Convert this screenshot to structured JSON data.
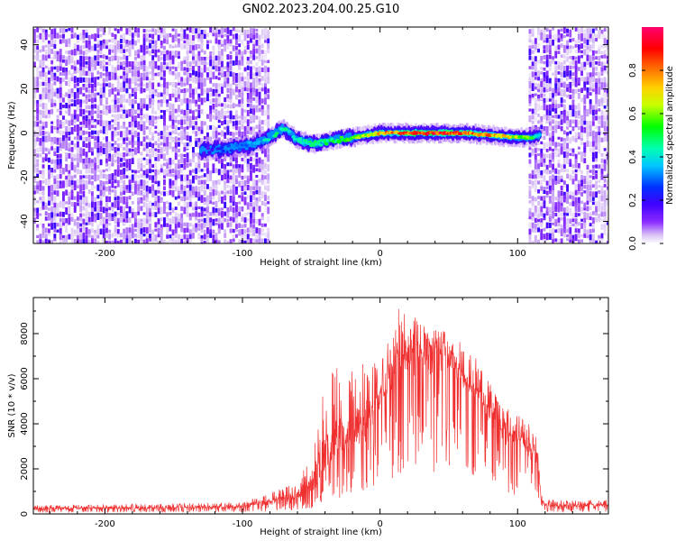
{
  "title": "GN02.2023.204.00.25.G10",
  "chart_data": [
    {
      "type": "heatmap",
      "xlabel": "Height of straight line (km)",
      "ylabel": "Frequency (Hz)",
      "xlim": [
        -252,
        166
      ],
      "ylim": [
        -50,
        48
      ],
      "xticks": [
        -200,
        -100,
        0,
        100
      ],
      "yticks": [
        -40,
        -20,
        0,
        20,
        40
      ],
      "colorbar": {
        "label": "Normalized spectral amplitude",
        "range": [
          0,
          1
        ],
        "ticks": [
          "0.0",
          "0.2",
          "0.4",
          "0.6",
          "0.8"
        ],
        "colormap": [
          "#ffffff",
          "#c8a0f0",
          "#7000ff",
          "#0000ff",
          "#00ffff",
          "#00ff00",
          "#ffff00",
          "#ff8000",
          "#ff0000",
          "#ff00ff"
        ]
      },
      "noise_regions": [
        [
          -252,
          -82
        ],
        [
          108,
          166
        ]
      ],
      "signal_track": {
        "x": [
          -130,
          -110,
          -100,
          -92,
          -84,
          -76,
          -70,
          -62,
          -55,
          -45,
          -35,
          -20,
          0,
          20,
          40,
          60,
          80,
          100,
          110,
          116
        ],
        "freq_hz": [
          -8,
          -7,
          -6,
          -5,
          -3,
          0,
          2,
          -2,
          -4,
          -5,
          -3,
          -2,
          0,
          0,
          0,
          0,
          -1,
          -2,
          -2,
          -1
        ],
        "peak_amplitude": [
          0.15,
          0.25,
          0.3,
          0.35,
          0.4,
          0.45,
          0.5,
          0.4,
          0.45,
          0.45,
          0.5,
          0.55,
          0.75,
          0.85,
          0.9,
          0.85,
          0.8,
          0.65,
          0.55,
          0.4
        ]
      }
    },
    {
      "type": "line",
      "xlabel": "Height of straight line (km)",
      "ylabel": "SNR (10 * v/v)",
      "xlim": [
        -252,
        166
      ],
      "ylim": [
        0,
        9600
      ],
      "xticks": [
        -200,
        -100,
        0,
        100
      ],
      "yticks": [
        0,
        2000,
        4000,
        6000,
        8000
      ],
      "color": "#f03030",
      "series": [
        {
          "x": [
            -252,
            -200,
            -150,
            -100,
            -80,
            -60,
            -50,
            -45,
            -40,
            -35,
            -30,
            -25,
            -20,
            -15,
            -10,
            -5,
            0,
            5,
            10,
            15,
            20,
            25,
            30,
            35,
            40,
            45,
            50,
            55,
            60,
            65,
            70,
            75,
            80,
            85,
            90,
            95,
            100,
            105,
            110,
            115,
            117,
            120,
            140,
            166
          ],
          "base": [
            220,
            230,
            250,
            280,
            420,
            700,
            1000,
            1400,
            2000,
            2400,
            2700,
            2900,
            3100,
            3400,
            3700,
            4100,
            5200,
            5800,
            6300,
            6700,
            7000,
            7200,
            7300,
            7300,
            7200,
            7100,
            6900,
            6600,
            6200,
            5700,
            5200,
            4800,
            4400,
            4000,
            3600,
            3400,
            3300,
            3000,
            2700,
            2400,
            600,
            350,
            330,
            350
          ],
          "peak": [
            400,
            430,
            480,
            520,
            900,
            1500,
            2500,
            4200,
            6000,
            6400,
            6800,
            6200,
            7000,
            6600,
            6900,
            6800,
            7400,
            7600,
            8600,
            9500,
            8900,
            8800,
            8500,
            8400,
            8200,
            8200,
            7900,
            7800,
            7600,
            7200,
            6900,
            6300,
            5800,
            5200,
            4800,
            4600,
            4500,
            4300,
            3800,
            3200,
            900,
            650,
            600,
            650
          ]
        }
      ]
    }
  ]
}
